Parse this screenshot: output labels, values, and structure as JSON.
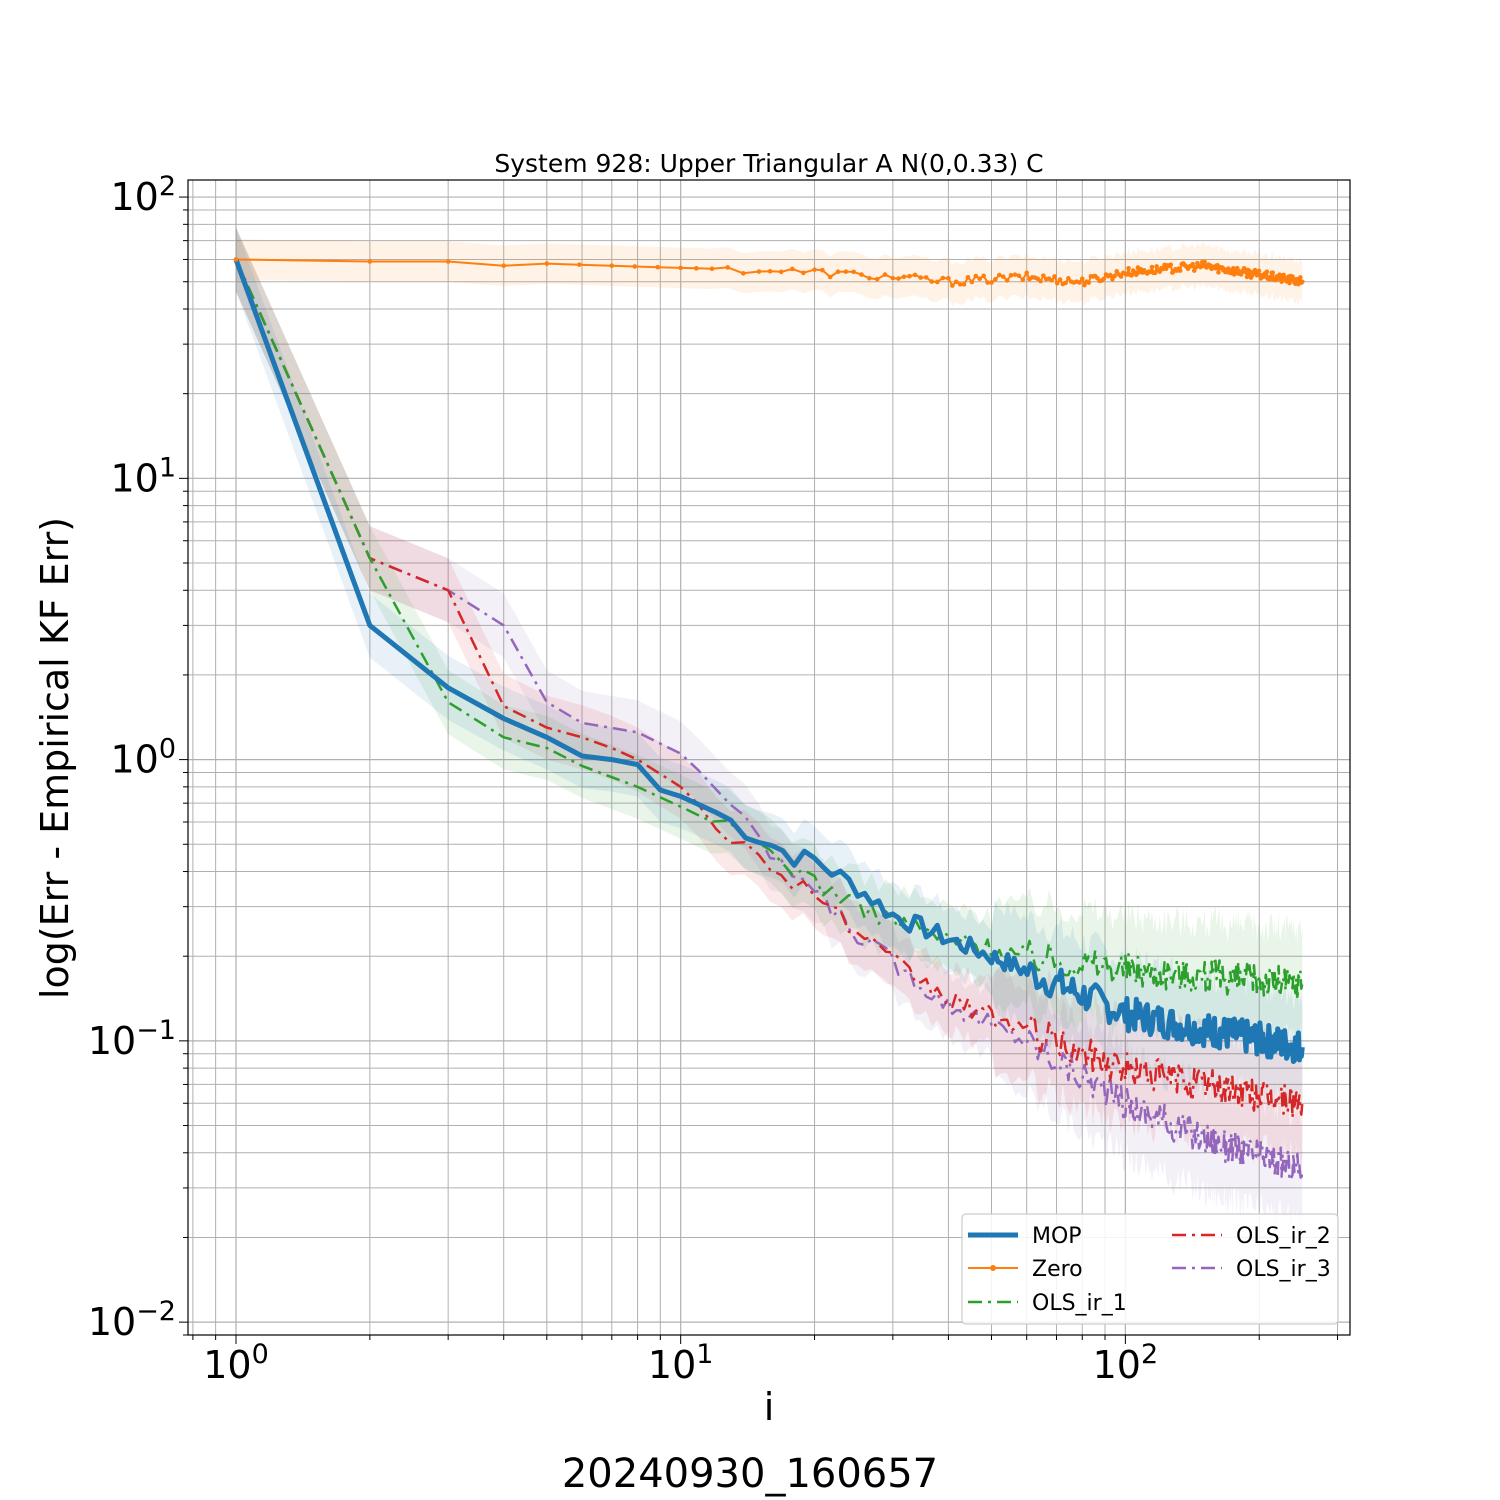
{
  "chart_data": {
    "type": "line",
    "title": "System 928: Upper Triangular A N(0,0.33) C",
    "xlabel": "i",
    "ylabel": "log(Err - Empirical KF Err)",
    "footer": "20240930_160657",
    "xscale": "log",
    "yscale": "log",
    "xlim": [
      0.78,
      320
    ],
    "ylim": [
      0.009,
      115
    ],
    "x_ticks": [
      {
        "value": 1,
        "base": "10",
        "exp": "0"
      },
      {
        "value": 10,
        "base": "10",
        "exp": "1"
      },
      {
        "value": 100,
        "base": "10",
        "exp": "2"
      }
    ],
    "y_ticks": [
      {
        "value": 0.01,
        "base": "10",
        "exp": "−2"
      },
      {
        "value": 0.1,
        "base": "10",
        "exp": "−1"
      },
      {
        "value": 1,
        "base": "10",
        "exp": "0"
      },
      {
        "value": 10,
        "base": "10",
        "exp": "1"
      },
      {
        "value": 100,
        "base": "10",
        "exp": "2"
      }
    ],
    "grid": true,
    "legend_position": "lower-right",
    "series": [
      {
        "name": "MOP",
        "color": "#1f77b4",
        "style": "solid",
        "width": 5,
        "x": [
          1,
          2,
          3,
          4,
          5,
          6,
          7,
          8,
          9,
          10,
          12,
          14,
          16,
          18,
          20,
          25,
          30,
          40,
          50,
          70,
          100,
          150,
          250
        ],
        "y": [
          60,
          3.0,
          1.8,
          1.4,
          1.2,
          1.03,
          1.0,
          0.96,
          0.78,
          0.74,
          0.65,
          0.56,
          0.5,
          0.45,
          0.44,
          0.35,
          0.28,
          0.23,
          0.2,
          0.16,
          0.125,
          0.11,
          0.095
        ]
      },
      {
        "name": "Zero",
        "color": "#ff7f0e",
        "style": "solid-marker",
        "width": 2,
        "x": [
          1,
          2,
          3,
          4,
          5,
          7,
          10,
          15,
          20,
          30,
          40,
          60,
          80,
          100,
          150,
          250
        ],
        "y": [
          60,
          59,
          59,
          57,
          58,
          57,
          56,
          55,
          54,
          52,
          50,
          52,
          50,
          54,
          57,
          50
        ]
      },
      {
        "name": "OLS_ir_1",
        "color": "#2ca02c",
        "style": "dashdot",
        "width": 2.5,
        "x": [
          1,
          2,
          3,
          4,
          5,
          6,
          8,
          10,
          15,
          20,
          25,
          30,
          40,
          60,
          80,
          100,
          150,
          250
        ],
        "y": [
          60,
          5.2,
          1.6,
          1.2,
          1.1,
          0.95,
          0.8,
          0.68,
          0.5,
          0.37,
          0.3,
          0.27,
          0.23,
          0.2,
          0.19,
          0.18,
          0.17,
          0.16
        ]
      },
      {
        "name": "OLS_ir_2",
        "color": "#d62728",
        "style": "dashdot",
        "width": 2.5,
        "x": [
          1,
          2,
          3,
          4,
          5,
          6,
          7,
          8,
          10,
          12,
          15,
          20,
          25,
          30,
          40,
          60,
          80,
          100,
          150,
          250
        ],
        "y": [
          60,
          5.2,
          4.0,
          1.55,
          1.3,
          1.2,
          1.1,
          1.0,
          0.8,
          0.6,
          0.44,
          0.34,
          0.24,
          0.19,
          0.14,
          0.11,
          0.09,
          0.08,
          0.07,
          0.06
        ]
      },
      {
        "name": "OLS_ir_3",
        "color": "#9467bd",
        "style": "dashdot",
        "width": 2.5,
        "x": [
          1,
          2,
          3,
          4,
          5,
          6,
          8,
          10,
          12,
          15,
          20,
          25,
          30,
          40,
          60,
          80,
          100,
          150,
          250
        ],
        "y": [
          60,
          5.2,
          4.0,
          3.0,
          1.6,
          1.35,
          1.25,
          1.05,
          0.8,
          0.5,
          0.34,
          0.24,
          0.19,
          0.135,
          0.1,
          0.075,
          0.06,
          0.045,
          0.035
        ]
      }
    ]
  }
}
